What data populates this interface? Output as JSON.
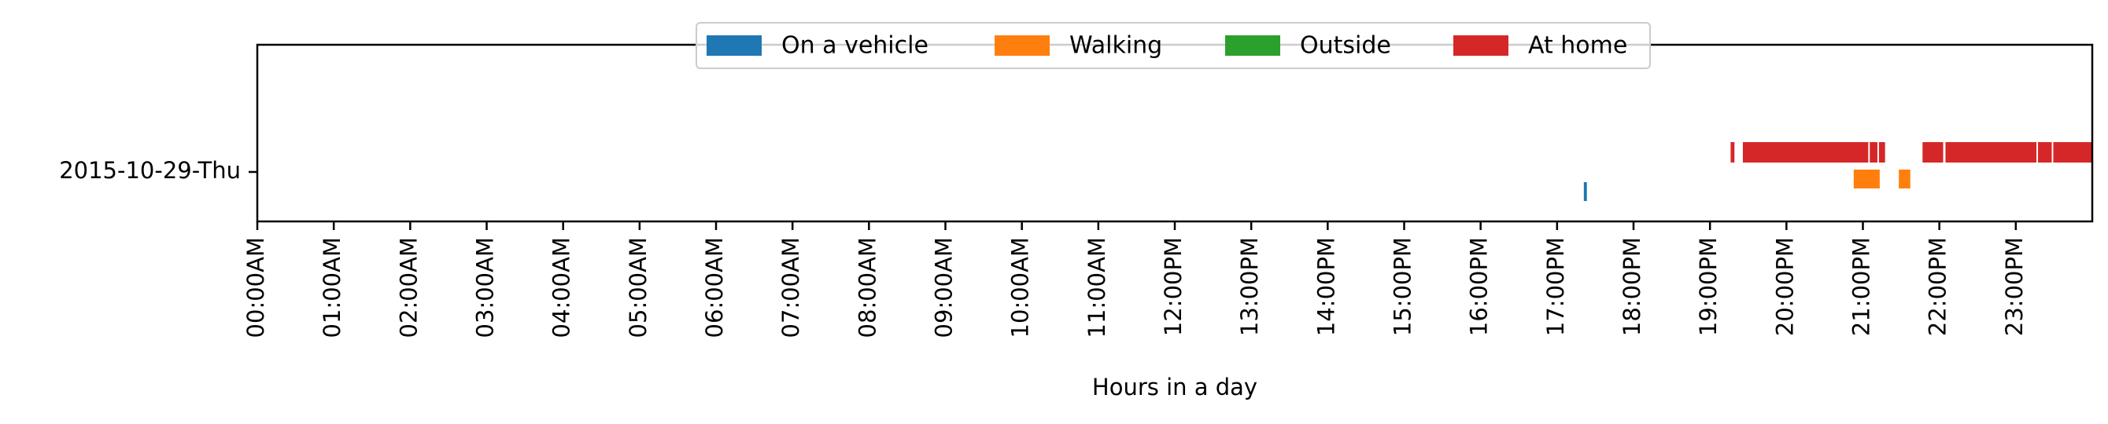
{
  "chart_data": {
    "type": "timeline",
    "title": "",
    "xlabel": "Hours in a day",
    "ylabel": "",
    "xlim": [
      0,
      24
    ],
    "x_unit": "hours",
    "grid": false,
    "legend_position": "top-center",
    "xticks": [
      {
        "value": 0,
        "label": "00:00AM"
      },
      {
        "value": 1,
        "label": "01:00AM"
      },
      {
        "value": 2,
        "label": "02:00AM"
      },
      {
        "value": 3,
        "label": "03:00AM"
      },
      {
        "value": 4,
        "label": "04:00AM"
      },
      {
        "value": 5,
        "label": "05:00AM"
      },
      {
        "value": 6,
        "label": "06:00AM"
      },
      {
        "value": 7,
        "label": "07:00AM"
      },
      {
        "value": 8,
        "label": "08:00AM"
      },
      {
        "value": 9,
        "label": "09:00AM"
      },
      {
        "value": 10,
        "label": "10:00AM"
      },
      {
        "value": 11,
        "label": "11:00AM"
      },
      {
        "value": 12,
        "label": "12:00PM"
      },
      {
        "value": 13,
        "label": "13:00PM"
      },
      {
        "value": 14,
        "label": "14:00PM"
      },
      {
        "value": 15,
        "label": "15:00PM"
      },
      {
        "value": 16,
        "label": "16:00PM"
      },
      {
        "value": 17,
        "label": "17:00PM"
      },
      {
        "value": 18,
        "label": "18:00PM"
      },
      {
        "value": 19,
        "label": "19:00PM"
      },
      {
        "value": 20,
        "label": "20:00PM"
      },
      {
        "value": 21,
        "label": "21:00PM"
      },
      {
        "value": 22,
        "label": "22:00PM"
      },
      {
        "value": 23,
        "label": "23:00PM"
      }
    ],
    "categories": [
      "2015-10-29-Thu"
    ],
    "series": [
      {
        "name": "On a vehicle",
        "color": "#1f77b4",
        "segments": [
          {
            "day": "2015-10-29-Thu",
            "start": 17.35,
            "end": 17.39
          }
        ]
      },
      {
        "name": "Walking",
        "color": "#ff7f0e",
        "segments": [
          {
            "day": "2015-10-29-Thu",
            "start": 20.88,
            "end": 21.22
          },
          {
            "day": "2015-10-29-Thu",
            "start": 21.47,
            "end": 21.62
          }
        ]
      },
      {
        "name": "Outside",
        "color": "#2ca02c",
        "segments": []
      },
      {
        "name": "At home",
        "color": "#d62728",
        "segments": [
          {
            "day": "2015-10-29-Thu",
            "start": 19.27,
            "end": 19.32
          },
          {
            "day": "2015-10-29-Thu",
            "start": 19.43,
            "end": 21.07
          },
          {
            "day": "2015-10-29-Thu",
            "start": 21.09,
            "end": 21.19
          },
          {
            "day": "2015-10-29-Thu",
            "start": 21.21,
            "end": 21.29
          },
          {
            "day": "2015-10-29-Thu",
            "start": 21.78,
            "end": 22.05
          },
          {
            "day": "2015-10-29-Thu",
            "start": 22.08,
            "end": 23.27
          },
          {
            "day": "2015-10-29-Thu",
            "start": 23.29,
            "end": 23.47
          },
          {
            "day": "2015-10-29-Thu",
            "start": 23.49,
            "end": 24.0
          }
        ]
      }
    ]
  }
}
